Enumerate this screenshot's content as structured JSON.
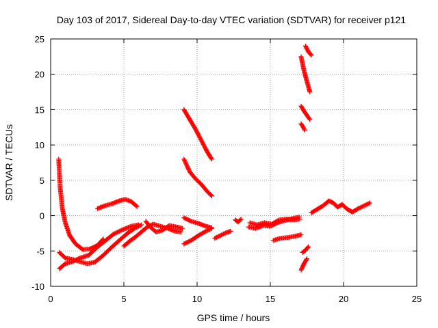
{
  "chart_data": {
    "type": "scatter",
    "title": "Day 103 of 2017, Sidereal Day-to-day VTEC variation (SDTVAR) for receiver p121",
    "xlabel": "GPS time / hours",
    "ylabel": "SDTVAR / TECUs",
    "xlim": [
      0,
      25
    ],
    "ylim": [
      -10,
      25
    ],
    "xticks": [
      "0",
      "5",
      "10",
      "15",
      "20",
      "25"
    ],
    "yticks": [
      "-10",
      "-5",
      "0",
      "5",
      "10",
      "15",
      "20",
      "25"
    ],
    "grid": true,
    "legend": "none",
    "marker": "plus",
    "color": "#ff0000",
    "tracks": [
      [
        [
          0.55,
          8.0
        ],
        [
          0.65,
          4.0
        ],
        [
          0.8,
          1.0
        ],
        [
          1.0,
          -1.0
        ],
        [
          1.3,
          -2.8
        ],
        [
          1.7,
          -4.0
        ],
        [
          2.2,
          -4.8
        ],
        [
          2.7,
          -4.7
        ],
        [
          3.2,
          -4.2
        ],
        [
          3.6,
          -3.3
        ]
      ],
      [
        [
          0.6,
          -5.2
        ],
        [
          1.0,
          -6.0
        ],
        [
          1.5,
          -6.2
        ],
        [
          2.0,
          -6.5
        ],
        [
          2.5,
          -6.8
        ],
        [
          3.0,
          -6.6
        ],
        [
          3.6,
          -5.6
        ],
        [
          4.2,
          -4.4
        ],
        [
          4.8,
          -3.3
        ],
        [
          5.3,
          -2.4
        ],
        [
          5.8,
          -1.7
        ],
        [
          6.2,
          -1.3
        ]
      ],
      [
        [
          0.6,
          -7.5
        ],
        [
          1.0,
          -6.8
        ],
        [
          1.5,
          -6.5
        ],
        [
          2.0,
          -6.0
        ],
        [
          2.6,
          -5.6
        ],
        [
          3.1,
          -4.6
        ],
        [
          3.7,
          -3.6
        ],
        [
          4.3,
          -2.6
        ],
        [
          4.9,
          -2.0
        ],
        [
          5.5,
          -1.5
        ],
        [
          6.0,
          -1.3
        ]
      ],
      [
        [
          3.2,
          1.0
        ],
        [
          3.7,
          1.4
        ],
        [
          4.2,
          1.7
        ],
        [
          4.7,
          2.1
        ],
        [
          5.1,
          2.3
        ],
        [
          5.5,
          2.0
        ],
        [
          5.9,
          1.3
        ]
      ],
      [
        [
          5.0,
          -4.3
        ],
        [
          5.4,
          -3.6
        ],
        [
          5.8,
          -3.0
        ],
        [
          6.2,
          -2.3
        ],
        [
          6.6,
          -1.6
        ],
        [
          7.0,
          -1.2
        ],
        [
          7.5,
          -1.5
        ],
        [
          8.0,
          -1.8
        ],
        [
          8.5,
          -2.2
        ],
        [
          8.9,
          -2.3
        ]
      ],
      [
        [
          6.5,
          -0.8
        ],
        [
          6.8,
          -1.6
        ],
        [
          7.2,
          -2.3
        ],
        [
          7.6,
          -2.1
        ],
        [
          8.1,
          -1.4
        ],
        [
          8.6,
          -1.6
        ],
        [
          9.0,
          -1.8
        ]
      ],
      [
        [
          9.1,
          15.0
        ],
        [
          9.5,
          13.6
        ],
        [
          9.9,
          12.2
        ],
        [
          10.3,
          10.6
        ],
        [
          10.7,
          9.0
        ],
        [
          11.0,
          8.0
        ]
      ],
      [
        [
          9.1,
          8.0
        ],
        [
          9.5,
          6.2
        ],
        [
          9.9,
          5.2
        ],
        [
          10.3,
          4.4
        ],
        [
          10.7,
          3.4
        ],
        [
          11.0,
          2.8
        ]
      ],
      [
        [
          9.1,
          -0.3
        ],
        [
          9.6,
          -0.8
        ],
        [
          10.1,
          -1.1
        ],
        [
          10.6,
          -1.5
        ],
        [
          11.0,
          -1.7
        ]
      ],
      [
        [
          9.1,
          -4.0
        ],
        [
          9.6,
          -3.5
        ],
        [
          10.1,
          -2.8
        ],
        [
          10.6,
          -2.2
        ],
        [
          11.0,
          -1.8
        ]
      ],
      [
        [
          11.2,
          -3.2
        ],
        [
          11.6,
          -2.8
        ],
        [
          12.0,
          -2.4
        ],
        [
          12.3,
          -2.2
        ]
      ],
      [
        [
          12.6,
          -0.6
        ],
        [
          12.8,
          -0.9
        ],
        [
          13.0,
          -0.5
        ]
      ],
      [
        [
          13.5,
          -1.6
        ],
        [
          14.0,
          -1.8
        ],
        [
          14.5,
          -1.4
        ],
        [
          15.0,
          -1.5
        ],
        [
          15.5,
          -1.0
        ],
        [
          16.0,
          -0.7
        ],
        [
          16.5,
          -0.4
        ],
        [
          17.0,
          -0.2
        ]
      ],
      [
        [
          13.6,
          -1.0
        ],
        [
          14.1,
          -1.3
        ],
        [
          14.6,
          -1.0
        ],
        [
          15.1,
          -1.2
        ],
        [
          15.6,
          -0.6
        ],
        [
          16.1,
          -0.5
        ],
        [
          16.6,
          -0.6
        ],
        [
          17.0,
          -0.5
        ]
      ],
      [
        [
          15.2,
          -3.5
        ],
        [
          15.7,
          -3.2
        ],
        [
          16.2,
          -3.1
        ],
        [
          16.7,
          -2.9
        ],
        [
          17.1,
          -2.7
        ]
      ],
      [
        [
          17.2,
          -5.2
        ],
        [
          17.4,
          -4.9
        ],
        [
          17.6,
          -4.4
        ]
      ],
      [
        [
          17.1,
          -7.7
        ],
        [
          17.3,
          -6.8
        ],
        [
          17.5,
          -6.1
        ]
      ],
      [
        [
          17.1,
          22.5
        ],
        [
          17.3,
          20.5
        ],
        [
          17.5,
          19.0
        ],
        [
          17.7,
          17.5
        ]
      ],
      [
        [
          17.4,
          24.0
        ],
        [
          17.6,
          23.2
        ],
        [
          17.8,
          22.7
        ]
      ],
      [
        [
          17.1,
          15.5
        ],
        [
          17.3,
          14.8
        ],
        [
          17.5,
          14.2
        ],
        [
          17.7,
          13.6
        ]
      ],
      [
        [
          17.1,
          13.0
        ],
        [
          17.25,
          12.5
        ],
        [
          17.35,
          12.1
        ]
      ],
      [
        [
          17.8,
          0.4
        ],
        [
          18.2,
          0.9
        ],
        [
          18.6,
          1.4
        ],
        [
          19.0,
          2.1
        ],
        [
          19.3,
          1.8
        ],
        [
          19.6,
          1.2
        ],
        [
          19.9,
          1.6
        ],
        [
          20.2,
          1.0
        ],
        [
          20.6,
          0.5
        ],
        [
          21.0,
          1.0
        ],
        [
          21.4,
          1.4
        ],
        [
          21.8,
          1.8
        ]
      ]
    ]
  }
}
